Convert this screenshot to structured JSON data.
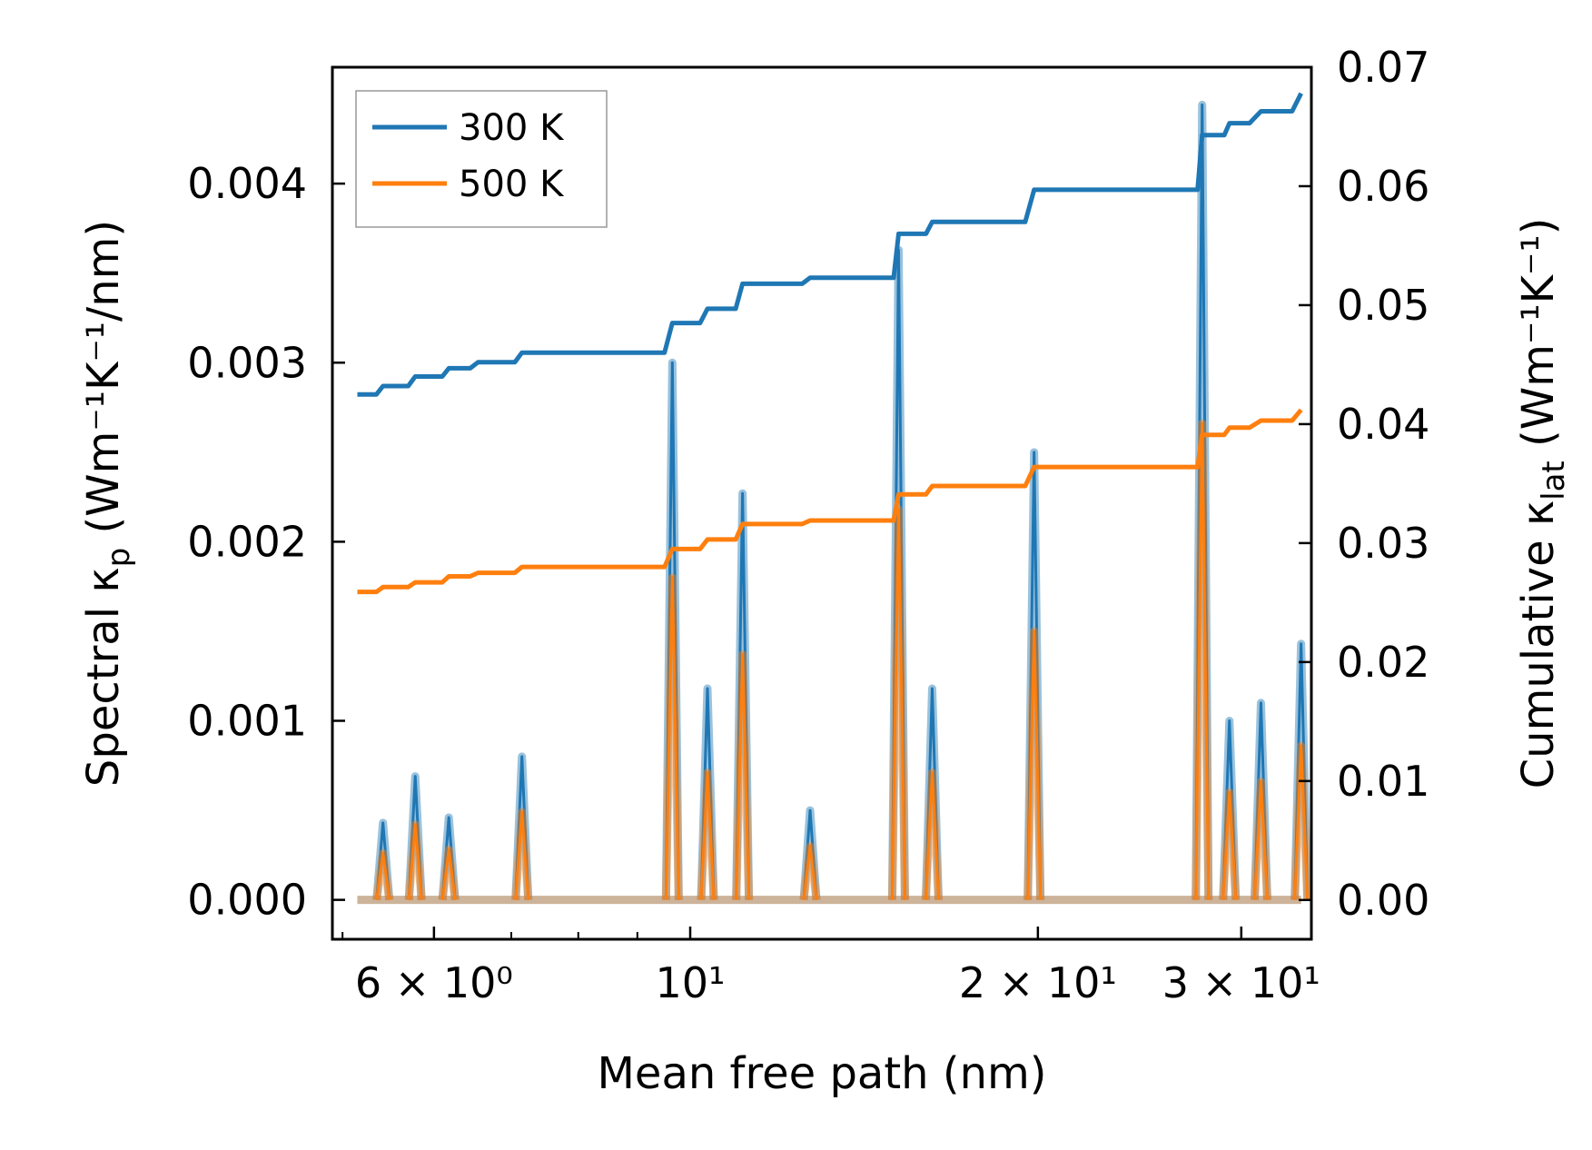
{
  "chart_data": {
    "type": "line",
    "xlabel": "Mean free path (nm)",
    "ylabel_left": "Spectral κ",
    "ylabel_left_sub": "p",
    "ylabel_left_unit": " (Wm⁻¹K⁻¹/nm)",
    "ylabel_right": "Cumulative κ",
    "ylabel_right_sub": "lat",
    "ylabel_right_unit": " (Wm⁻¹K⁻¹)",
    "xscale": "log",
    "xlim": [
      4.9,
      34.5
    ],
    "ylim_left": [
      -0.00022,
      0.00465
    ],
    "ylim_right": [
      -0.0033,
      0.07
    ],
    "x_ticks": [
      {
        "value": 6,
        "label": "6 × 10⁰"
      },
      {
        "value": 10,
        "label": "10¹"
      },
      {
        "value": 20,
        "label": "2 × 10¹"
      },
      {
        "value": 30,
        "label": "3 × 10¹"
      }
    ],
    "y_ticks_left": [
      "0.000",
      "0.001",
      "0.002",
      "0.003",
      "0.004"
    ],
    "y_ticks_right": [
      "0.00",
      "0.01",
      "0.02",
      "0.03",
      "0.04",
      "0.05",
      "0.06",
      "0.07"
    ],
    "legend": [
      {
        "name": "300 K",
        "color": "#1f77b4"
      },
      {
        "name": "500 K",
        "color": "#ff7f0e"
      }
    ],
    "series": [
      {
        "name": "300 K",
        "color": "#1f77b4",
        "axis": "right",
        "kind": "cumulative",
        "x": [
          5.15,
          5.35,
          5.42,
          5.7,
          5.78,
          6.1,
          6.18,
          6.45,
          6.55,
          7.05,
          7.15,
          9.5,
          9.65,
          10.2,
          10.35,
          10.95,
          11.1,
          12.5,
          12.7,
          15.0,
          15.15,
          16.0,
          16.2,
          19.5,
          19.85,
          27.5,
          27.75,
          29.0,
          29.3,
          30.5,
          31.2,
          32.8,
          33.2,
          33.8
        ],
        "values": [
          0.0425,
          0.0425,
          0.0432,
          0.0432,
          0.044,
          0.044,
          0.0447,
          0.0447,
          0.0452,
          0.0452,
          0.046,
          0.046,
          0.0485,
          0.0485,
          0.0497,
          0.0497,
          0.0518,
          0.0518,
          0.0523,
          0.0523,
          0.056,
          0.056,
          0.057,
          0.057,
          0.0597,
          0.0597,
          0.0643,
          0.0643,
          0.0653,
          0.0653,
          0.0663,
          0.0663,
          0.0663,
          0.0678
        ]
      },
      {
        "name": "500 K",
        "color": "#ff7f0e",
        "axis": "right",
        "kind": "cumulative",
        "x": [
          5.15,
          5.35,
          5.42,
          5.7,
          5.78,
          6.1,
          6.18,
          6.45,
          6.55,
          7.05,
          7.15,
          9.5,
          9.65,
          10.2,
          10.35,
          10.95,
          11.1,
          12.5,
          12.7,
          15.0,
          15.15,
          16.0,
          16.2,
          19.5,
          19.85,
          27.5,
          27.75,
          29.0,
          29.3,
          30.5,
          31.2,
          32.8,
          33.2,
          33.8
        ],
        "values": [
          0.0259,
          0.0259,
          0.0263,
          0.0263,
          0.0267,
          0.0267,
          0.0272,
          0.0272,
          0.0275,
          0.0275,
          0.028,
          0.028,
          0.0295,
          0.0295,
          0.0303,
          0.0303,
          0.0316,
          0.0316,
          0.0319,
          0.0319,
          0.0341,
          0.0341,
          0.0348,
          0.0348,
          0.0364,
          0.0364,
          0.0391,
          0.0391,
          0.0397,
          0.0397,
          0.0403,
          0.0403,
          0.0403,
          0.0412
        ]
      }
    ],
    "spectral": [
      {
        "name": "300 K",
        "color": "#1f77b4",
        "axis": "left",
        "peaks": [
          {
            "x": 5.42,
            "value": 0.00043
          },
          {
            "x": 5.78,
            "value": 0.00069
          },
          {
            "x": 6.18,
            "value": 0.00046
          },
          {
            "x": 7.15,
            "value": 0.0008
          },
          {
            "x": 9.65,
            "value": 0.003
          },
          {
            "x": 10.35,
            "value": 0.00118
          },
          {
            "x": 11.1,
            "value": 0.00227
          },
          {
            "x": 12.7,
            "value": 0.0005
          },
          {
            "x": 15.15,
            "value": 0.00363
          },
          {
            "x": 16.2,
            "value": 0.00118
          },
          {
            "x": 19.85,
            "value": 0.0025
          },
          {
            "x": 27.75,
            "value": 0.00444
          },
          {
            "x": 29.3,
            "value": 0.001
          },
          {
            "x": 31.2,
            "value": 0.0011
          },
          {
            "x": 33.8,
            "value": 0.00143
          }
        ]
      },
      {
        "name": "500 K",
        "color": "#ff7f0e",
        "axis": "left",
        "peaks": [
          {
            "x": 5.42,
            "value": 0.00026
          },
          {
            "x": 5.78,
            "value": 0.00042
          },
          {
            "x": 6.18,
            "value": 0.00028
          },
          {
            "x": 7.15,
            "value": 0.00049
          },
          {
            "x": 9.65,
            "value": 0.0018
          },
          {
            "x": 10.35,
            "value": 0.00071
          },
          {
            "x": 11.1,
            "value": 0.00137
          },
          {
            "x": 12.7,
            "value": 0.0003
          },
          {
            "x": 15.15,
            "value": 0.00218
          },
          {
            "x": 16.2,
            "value": 0.00071
          },
          {
            "x": 19.85,
            "value": 0.0015
          },
          {
            "x": 27.75,
            "value": 0.00266
          },
          {
            "x": 29.3,
            "value": 0.0006
          },
          {
            "x": 31.2,
            "value": 0.00066
          },
          {
            "x": 33.8,
            "value": 0.00086
          }
        ]
      }
    ]
  }
}
